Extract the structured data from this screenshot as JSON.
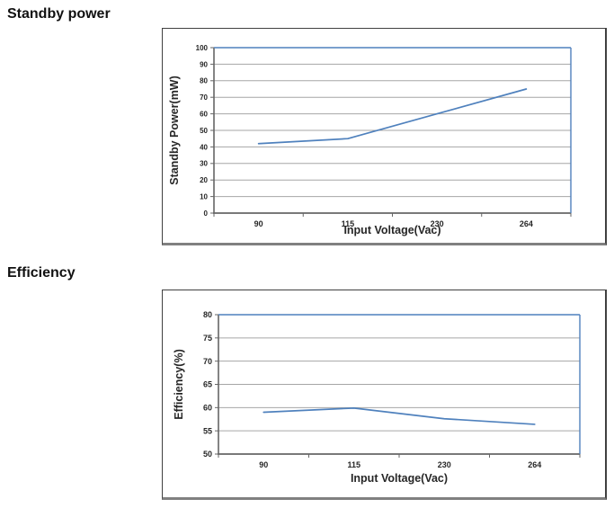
{
  "colors": {
    "line": "#4f81bd",
    "plot_border": "#4f81bd",
    "gridline": "#a6a6a6",
    "axis": "#666666",
    "tick_label": "#262626",
    "heading_text": "#111111",
    "frame_border": "#404040",
    "frame_shadow": "#808080"
  },
  "chart_data": [
    {
      "type": "line",
      "title": "Standby power",
      "categories": [
        "90",
        "115",
        "230",
        "264"
      ],
      "series": [
        {
          "name": "Standby Power",
          "values": [
            42,
            45,
            60,
            75
          ]
        }
      ],
      "xlabel": "Input Voltage(Vac)",
      "ylabel": "Standby Power(mW)",
      "ylim": [
        0,
        100
      ],
      "ytick_step": 10,
      "grid": true,
      "legend": "none"
    },
    {
      "type": "line",
      "title": "Efficiency",
      "categories": [
        "90",
        "115",
        "230",
        "264"
      ],
      "series": [
        {
          "name": "Efficiency",
          "values": [
            59,
            59.9,
            57.6,
            56.4
          ]
        }
      ],
      "xlabel": "Input Voltage(Vac)",
      "ylabel": "Efficiency(%)",
      "ylim": [
        50,
        80
      ],
      "ytick_step": 5,
      "grid": true,
      "legend": "none"
    }
  ]
}
